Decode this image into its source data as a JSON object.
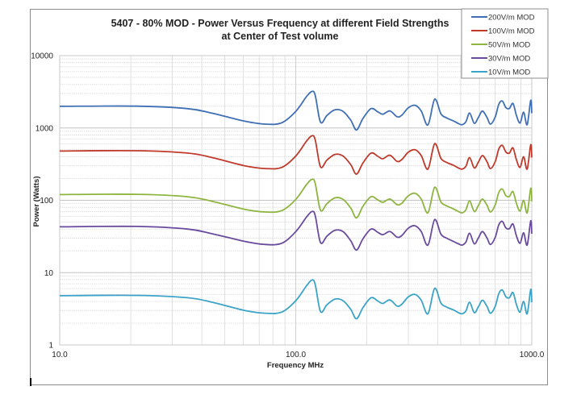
{
  "chart_data": {
    "type": "line",
    "title": "5407 - 80% MOD - Power Versus Frequency at different Field Strengths",
    "subtitle": "at Center of Test volume",
    "xlabel": "Frequency MHz",
    "ylabel": "Power (Watts)",
    "xscale": "log",
    "yscale": "log",
    "xlim": [
      10,
      1000
    ],
    "ylim": [
      1,
      10000
    ],
    "x_tick_labels": [
      "10.0",
      "100.0",
      "1000.0"
    ],
    "x_ticks": [
      10,
      100,
      1000
    ],
    "y_tick_labels": [
      "1",
      "10",
      "100",
      "1000",
      "10000"
    ],
    "y_ticks": [
      1,
      10,
      100,
      1000,
      10000
    ],
    "grid": true,
    "legend_position": "top-right",
    "x": [
      10,
      21.3,
      34.8,
      44.2,
      60.8,
      74.3,
      87.3,
      100.1,
      110.8,
      117.2,
      121.0,
      127.3,
      135.6,
      146.5,
      158.5,
      171.1,
      180.9,
      192.8,
      208.5,
      222.8,
      233.9,
      250.6,
      268.6,
      281.4,
      299.4,
      319.8,
      340.2,
      363.2,
      387.7,
      412.3,
      435.2,
      465.6,
      488.9,
      507.0,
      525.9,
      545.4,
      570.6,
      593.5,
      617.6,
      646.3,
      668.9,
      700.5,
      725.3,
      750.3,
      776.7,
      803.8,
      832.2,
      861.6,
      892.1,
      923.4,
      955.9,
      989.8,
      1000
    ],
    "series": [
      {
        "name": "200V/m MOD",
        "color": "#3f6fb5",
        "values": [
          1990,
          2000,
          1850,
          1600,
          1240,
          1130,
          1180,
          1700,
          2690,
          3200,
          2800,
          1200,
          1490,
          1780,
          1700,
          1280,
          940,
          1360,
          1850,
          1670,
          1550,
          1720,
          1430,
          1500,
          1890,
          2060,
          1720,
          1100,
          2490,
          1570,
          1380,
          1250,
          1150,
          1110,
          1220,
          1610,
          1160,
          1390,
          1710,
          1390,
          1130,
          1430,
          2130,
          2360,
          1910,
          1860,
          2180,
          1480,
          1170,
          1650,
          1110,
          2410,
          1600
        ]
      },
      {
        "name": "100V/m MOD",
        "color": "#c0392b",
        "values": [
          480,
          485,
          450,
          390,
          300,
          275,
          285,
          410,
          650,
          780,
          680,
          290,
          360,
          430,
          410,
          310,
          230,
          330,
          450,
          405,
          375,
          420,
          345,
          365,
          460,
          500,
          415,
          270,
          605,
          380,
          335,
          305,
          280,
          270,
          295,
          390,
          280,
          335,
          415,
          340,
          275,
          345,
          515,
          575,
          465,
          450,
          530,
          360,
          285,
          400,
          270,
          585,
          390
        ]
      },
      {
        "name": "50V/m MOD",
        "color": "#8db53f",
        "values": [
          120,
          121,
          112,
          97,
          75,
          69,
          72,
          103,
          163,
          195,
          170,
          73,
          90,
          108,
          103,
          78,
          57,
          83,
          112,
          101,
          94,
          104,
          87,
          91,
          115,
          125,
          104,
          67,
          151,
          95,
          84,
          76,
          70,
          67,
          74,
          98,
          70,
          84,
          104,
          85,
          69,
          87,
          129,
          143,
          116,
          113,
          132,
          90,
          71,
          100,
          67,
          146,
          97
        ]
      },
      {
        "name": "30V/m MOD",
        "color": "#6a4a9c",
        "values": [
          43,
          43.5,
          40,
          34.5,
          27,
          24.5,
          25.5,
          37,
          58,
          70,
          61,
          26,
          32,
          38.5,
          37,
          27.5,
          20.5,
          29.5,
          40,
          36,
          33.5,
          37,
          31,
          32.5,
          41,
          44.5,
          37,
          24,
          54,
          34,
          30,
          27,
          25,
          24,
          26.5,
          35,
          25,
          30,
          37,
          30,
          24.5,
          31,
          46,
          51,
          41.5,
          40.5,
          47,
          32,
          25.5,
          35.5,
          24,
          52,
          34.5
        ]
      },
      {
        "name": "10V/m MOD",
        "color": "#3ba3c7",
        "values": [
          4.8,
          4.85,
          4.5,
          3.9,
          3.0,
          2.75,
          2.85,
          4.1,
          6.5,
          7.9,
          6.8,
          2.9,
          3.6,
          4.3,
          4.1,
          3.1,
          2.3,
          3.3,
          4.5,
          4.05,
          3.75,
          4.2,
          3.45,
          3.65,
          4.6,
          5.0,
          4.15,
          2.7,
          6.05,
          3.8,
          3.35,
          3.05,
          2.8,
          2.7,
          2.95,
          3.9,
          2.8,
          3.35,
          4.15,
          3.4,
          2.75,
          3.45,
          5.15,
          5.75,
          4.65,
          4.5,
          5.3,
          3.6,
          2.85,
          4.0,
          2.7,
          5.85,
          3.9
        ]
      }
    ]
  }
}
